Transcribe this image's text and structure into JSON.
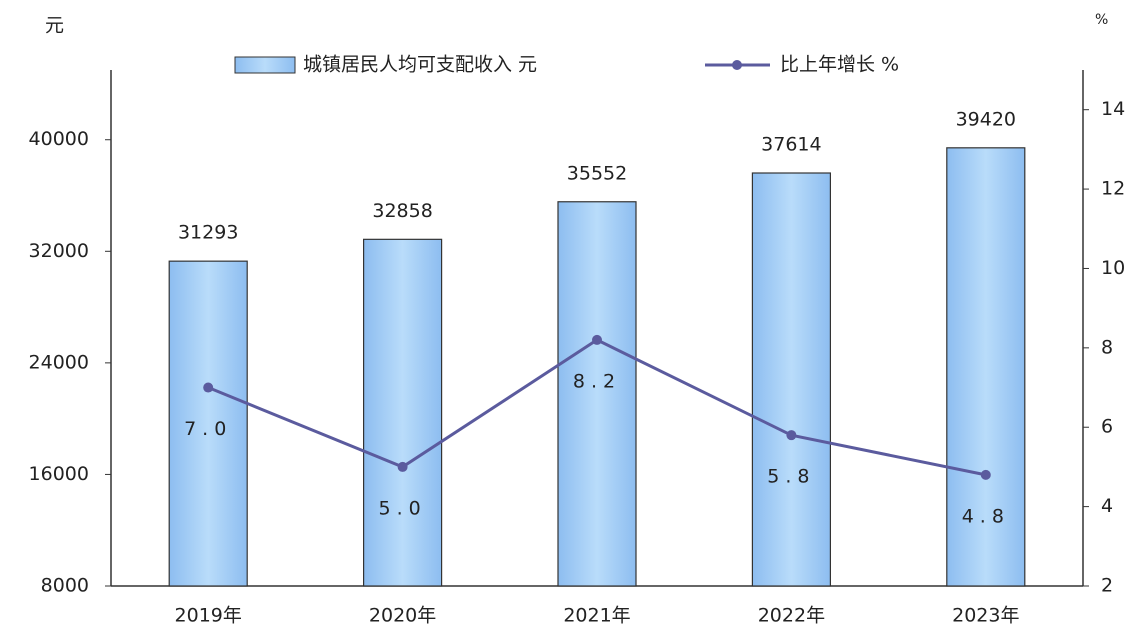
{
  "chart_data": {
    "type": "bar_line",
    "y_unit": "元",
    "y2_unit": "%",
    "categories": [
      "2019年",
      "2020年",
      "2021年",
      "2022年",
      "2023年"
    ],
    "series": [
      {
        "name": "城镇居民人均可支配收入 元",
        "type": "bar",
        "color": "#a6cff5",
        "values": [
          31293,
          32858,
          35552,
          37614,
          39420
        ]
      },
      {
        "name": "比上年增长 %",
        "type": "line",
        "axis": "y2",
        "color": "#5b5b9e",
        "values": [
          7.0,
          5.0,
          8.2,
          5.8,
          4.8
        ],
        "value_labels": [
          "7.0",
          "5.0",
          "8.2",
          "5.8",
          "4.8"
        ]
      }
    ],
    "ylim": [
      8000,
      45000
    ],
    "yticks": [
      8000,
      16000,
      24000,
      32000,
      40000
    ],
    "y2lim": [
      2,
      15
    ],
    "y2ticks": [
      2,
      4,
      6,
      8,
      10,
      12,
      14
    ]
  }
}
